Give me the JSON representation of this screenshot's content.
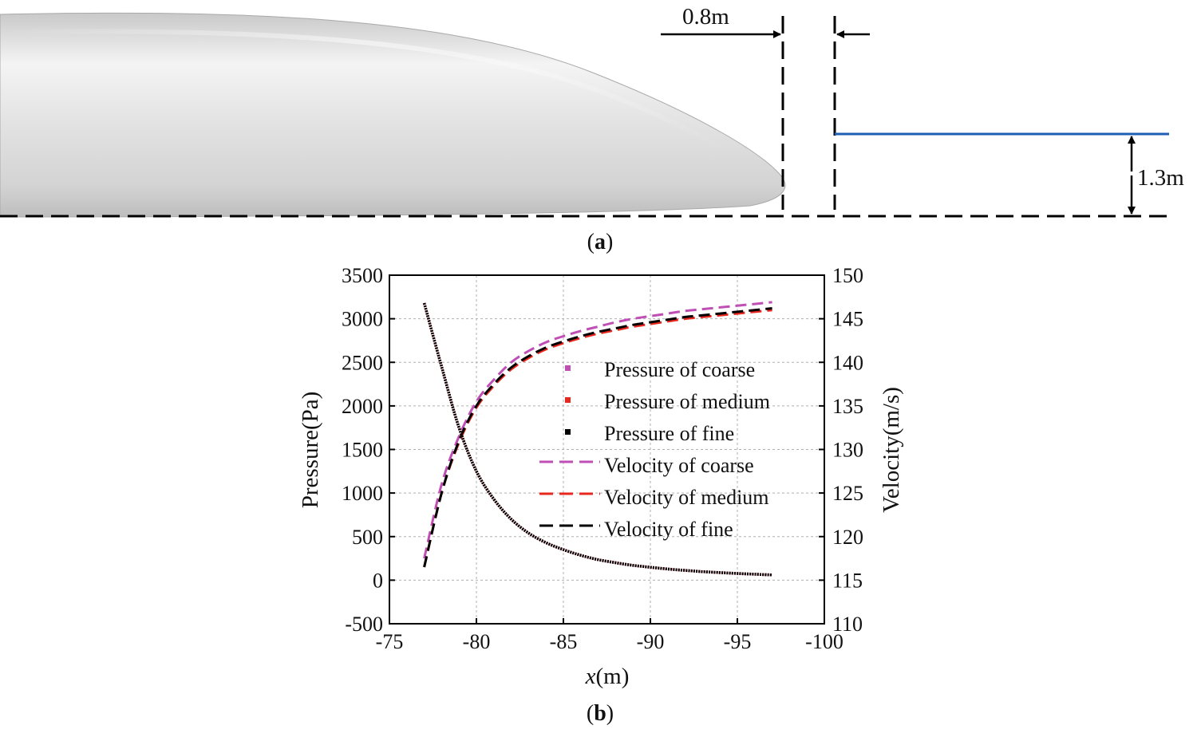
{
  "figure": {
    "panel_a_label": "a",
    "panel_b_label": "b",
    "dim_gap": "0.8m",
    "dim_height": "1.3m",
    "colors": {
      "coarse": "#c04fb5",
      "medium": "#e8281e",
      "fine": "#000000",
      "probe_line": "#1f5fb4",
      "grid": "#b0b0b0"
    }
  },
  "chart_data": {
    "type": "line",
    "xlabel_italic": "x",
    "xlabel_rest": "(m)",
    "ylabel_left": "Pressure(Pa)",
    "ylabel_right": "Velocity(m/s)",
    "xlim": [
      -75,
      -100
    ],
    "ylim_left": [
      -500,
      3500
    ],
    "ylim_right": [
      110,
      150
    ],
    "x_ticks": [
      -75,
      -80,
      -85,
      -90,
      -95,
      -100
    ],
    "y_left_ticks": [
      -500,
      0,
      500,
      1000,
      1500,
      2000,
      2500,
      3000,
      3500
    ],
    "y_right_ticks": [
      110,
      115,
      120,
      125,
      130,
      135,
      140,
      145,
      150
    ],
    "x": [
      -77,
      -78,
      -79,
      -80,
      -81,
      -82,
      -83,
      -84,
      -85,
      -86,
      -87,
      -88,
      -89,
      -90,
      -91,
      -92,
      -93,
      -94,
      -95,
      -96,
      -97
    ],
    "series": [
      {
        "name": "Pressure of coarse",
        "axis": "left",
        "style": "dots",
        "color": "#c04fb5",
        "values": [
          3180,
          2450,
          1750,
          1250,
          930,
          700,
          540,
          430,
          350,
          285,
          235,
          200,
          170,
          148,
          128,
          112,
          98,
          87,
          77,
          68,
          60
        ]
      },
      {
        "name": "Pressure of medium",
        "axis": "left",
        "style": "dots",
        "color": "#e8281e",
        "values": [
          3180,
          2450,
          1750,
          1250,
          930,
          700,
          540,
          430,
          350,
          285,
          235,
          200,
          170,
          148,
          128,
          112,
          98,
          87,
          77,
          68,
          60
        ]
      },
      {
        "name": "Pressure of fine",
        "axis": "left",
        "style": "dots",
        "color": "#000000",
        "values": [
          3180,
          2450,
          1750,
          1250,
          930,
          700,
          540,
          430,
          350,
          285,
          235,
          200,
          170,
          148,
          128,
          112,
          98,
          87,
          77,
          68,
          60
        ]
      },
      {
        "name": "Velocity of coarse",
        "axis": "right",
        "style": "dash",
        "color": "#c04fb5",
        "values": [
          117.5,
          126.0,
          131.5,
          135.5,
          138.0,
          140.0,
          141.3,
          142.3,
          143.0,
          143.6,
          144.1,
          144.6,
          145.0,
          145.3,
          145.6,
          145.9,
          146.1,
          146.3,
          146.5,
          146.7,
          146.9
        ]
      },
      {
        "name": "Velocity of medium",
        "axis": "right",
        "style": "dash",
        "color": "#e8281e",
        "values": [
          116.5,
          125.0,
          130.8,
          134.8,
          137.3,
          139.2,
          140.5,
          141.5,
          142.2,
          142.8,
          143.3,
          143.7,
          144.1,
          144.4,
          144.7,
          145.0,
          145.2,
          145.4,
          145.6,
          145.8,
          146.0
        ]
      },
      {
        "name": "Velocity of fine",
        "axis": "right",
        "style": "dash",
        "color": "#000000",
        "values": [
          116.5,
          125.0,
          131.0,
          135.0,
          137.5,
          139.4,
          140.7,
          141.7,
          142.4,
          143.0,
          143.5,
          143.9,
          144.3,
          144.6,
          144.9,
          145.2,
          145.4,
          145.6,
          145.8,
          146.0,
          146.2
        ]
      }
    ]
  }
}
